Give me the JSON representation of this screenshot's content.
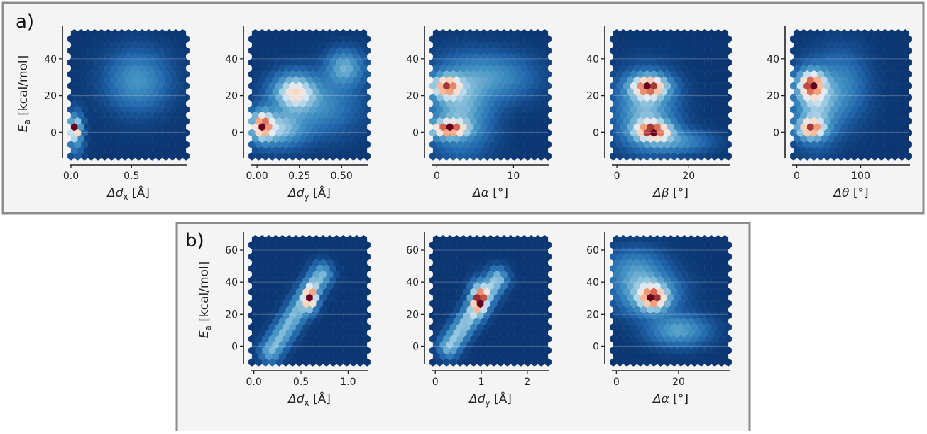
{
  "panels": [
    {
      "label": "a)"
    },
    {
      "label": "b)"
    }
  ],
  "colors": {
    "panel_background": "#f4f4f4",
    "panel_border": "#8c8c8c",
    "axis": "#222222",
    "colormap": "RdBu_r (dark blue low density → white → dark red high density)"
  },
  "chart_data": [
    {
      "type": "heatmap",
      "panel": "a)",
      "subtype": "hexbin",
      "xlabel_symbol": "Δd",
      "xlabel_sub": "x",
      "xlabel_unit": "[Å]",
      "ylabel_symbol": "E",
      "ylabel_sub": "a",
      "ylabel_unit": "[kcal/mol]",
      "xlim": [
        0,
        0.95
      ],
      "ylim": [
        -13,
        55
      ],
      "xticks": [
        0.0,
        0.5
      ],
      "xticklabels": [
        "0.0",
        "0.5"
      ],
      "yticks": [
        0,
        20,
        40
      ],
      "yticklabels": [
        "0",
        "20",
        "40"
      ],
      "density_peaks": [
        {
          "x": 0.03,
          "y": 2,
          "intensity": 1.0,
          "sx": 0.025,
          "sy": 3
        },
        {
          "x": 0.04,
          "y": 0,
          "intensity": 0.55,
          "sx": 0.04,
          "sy": 7
        },
        {
          "x": 0.55,
          "y": 28,
          "intensity": 0.35,
          "sx": 0.16,
          "sy": 10
        }
      ]
    },
    {
      "type": "heatmap",
      "panel": "a)",
      "subtype": "hexbin",
      "xlabel_symbol": "Δd",
      "xlabel_sub": "y",
      "xlabel_unit": "[Å]",
      "ylabel_symbol": "",
      "ylabel_sub": "",
      "ylabel_unit": "",
      "xlim": [
        -0.03,
        0.65
      ],
      "ylim": [
        -13,
        55
      ],
      "xticks": [
        0.0,
        0.25,
        0.5
      ],
      "xticklabels": [
        "0.00",
        "0.25",
        "0.50"
      ],
      "yticks": [
        0,
        20,
        40
      ],
      "yticklabels": [
        "0",
        "20",
        "40"
      ],
      "density_peaks": [
        {
          "x": 0.03,
          "y": 4,
          "intensity": 1.0,
          "sx": 0.04,
          "sy": 5
        },
        {
          "x": 0.22,
          "y": 22,
          "intensity": 0.75,
          "sx": 0.08,
          "sy": 6
        },
        {
          "x": 0.12,
          "y": 2,
          "intensity": 0.55,
          "sx": 0.1,
          "sy": 6
        },
        {
          "x": 0.52,
          "y": 35,
          "intensity": 0.45,
          "sx": 0.07,
          "sy": 6
        },
        {
          "x": 0.35,
          "y": 15,
          "intensity": 0.3,
          "sx": 0.15,
          "sy": 10
        }
      ]
    },
    {
      "type": "heatmap",
      "panel": "a)",
      "subtype": "hexbin",
      "xlabel_symbol": "Δα",
      "xlabel_sub": "",
      "xlabel_unit": "[°]",
      "ylabel_symbol": "",
      "ylabel_sub": "",
      "ylabel_unit": "",
      "xlim": [
        -0.5,
        14.5
      ],
      "ylim": [
        -13,
        55
      ],
      "xticks": [
        0,
        10
      ],
      "xticklabels": [
        "0",
        "10"
      ],
      "yticks": [
        0,
        20,
        40
      ],
      "yticklabels": [
        "0",
        "20",
        "40"
      ],
      "density_peaks": [
        {
          "x": 1.5,
          "y": 2,
          "intensity": 1.0,
          "sx": 1.6,
          "sy": 3
        },
        {
          "x": 1.2,
          "y": 25,
          "intensity": 0.9,
          "sx": 1.3,
          "sy": 4
        },
        {
          "x": 3.0,
          "y": 12,
          "intensity": 0.45,
          "sx": 2.5,
          "sy": 14
        },
        {
          "x": 7.0,
          "y": 30,
          "intensity": 0.3,
          "sx": 3.5,
          "sy": 8
        }
      ]
    },
    {
      "type": "heatmap",
      "panel": "a)",
      "subtype": "hexbin",
      "xlabel_symbol": "Δβ",
      "xlabel_sub": "",
      "xlabel_unit": "[°]",
      "ylabel_symbol": "",
      "ylabel_sub": "",
      "ylabel_unit": "",
      "xlim": [
        -1,
        31
      ],
      "ylim": [
        -13,
        55
      ],
      "xticks": [
        0,
        20
      ],
      "xticklabels": [
        "0",
        "20"
      ],
      "yticks": [
        0,
        20,
        40
      ],
      "yticklabels": [
        "0",
        "20",
        "40"
      ],
      "density_peaks": [
        {
          "x": 9,
          "y": 25,
          "intensity": 1.0,
          "sx": 3.5,
          "sy": 4
        },
        {
          "x": 10,
          "y": 1,
          "intensity": 0.95,
          "sx": 3.5,
          "sy": 3.5
        },
        {
          "x": 8,
          "y": 12,
          "intensity": 0.45,
          "sx": 5,
          "sy": 12
        },
        {
          "x": 16,
          "y": -5,
          "intensity": 0.3,
          "sx": 6,
          "sy": 4
        }
      ]
    },
    {
      "type": "heatmap",
      "panel": "a)",
      "subtype": "hexbin",
      "xlabel_symbol": "Δθ",
      "xlabel_sub": "",
      "xlabel_unit": "[°]",
      "ylabel_symbol": "",
      "ylabel_sub": "",
      "ylabel_unit": "",
      "xlim": [
        -5,
        175
      ],
      "ylim": [
        -13,
        55
      ],
      "xticks": [
        0,
        100
      ],
      "xticklabels": [
        "0",
        "100"
      ],
      "yticks": [
        0,
        20,
        40
      ],
      "yticklabels": [
        "0",
        "20",
        "40"
      ],
      "density_peaks": [
        {
          "x": 22,
          "y": 26,
          "intensity": 1.0,
          "sx": 14,
          "sy": 5
        },
        {
          "x": 22,
          "y": 2,
          "intensity": 0.95,
          "sx": 14,
          "sy": 3.5
        },
        {
          "x": 30,
          "y": 14,
          "intensity": 0.5,
          "sx": 22,
          "sy": 12
        },
        {
          "x": 70,
          "y": 25,
          "intensity": 0.25,
          "sx": 25,
          "sy": 12
        }
      ]
    },
    {
      "type": "heatmap",
      "panel": "b)",
      "subtype": "hexbin",
      "xlabel_symbol": "Δd",
      "xlabel_sub": "x",
      "xlabel_unit": "[Å]",
      "ylabel_symbol": "E",
      "ylabel_sub": "a",
      "ylabel_unit": "[kcal/mol]",
      "xlim": [
        -0.02,
        1.2
      ],
      "ylim": [
        -10,
        68
      ],
      "xticks": [
        0.0,
        0.5,
        1.0
      ],
      "xticklabels": [
        "0.0",
        "0.5",
        "1.0"
      ],
      "yticks": [
        0,
        20,
        40,
        60
      ],
      "yticklabels": [
        "0",
        "20",
        "40",
        "60"
      ],
      "ridge": {
        "x0": 0.18,
        "y0": -3,
        "x1": 0.72,
        "y1": 45,
        "width": 0.07,
        "intensity": 0.55
      },
      "density_peaks": [
        {
          "x": 0.6,
          "y": 30,
          "intensity": 1.0,
          "sx": 0.05,
          "sy": 5
        }
      ]
    },
    {
      "type": "heatmap",
      "panel": "b)",
      "subtype": "hexbin",
      "xlabel_symbol": "Δd",
      "xlabel_sub": "y",
      "xlabel_unit": "[Å]",
      "ylabel_symbol": "",
      "ylabel_sub": "",
      "ylabel_unit": "",
      "xlim": [
        -0.05,
        2.45
      ],
      "ylim": [
        -10,
        68
      ],
      "xticks": [
        0,
        1,
        2
      ],
      "xticklabels": [
        "0",
        "1",
        "2"
      ],
      "yticks": [
        0,
        20,
        40,
        60
      ],
      "yticklabels": [
        "0",
        "20",
        "40",
        "60"
      ],
      "ridge": {
        "x0": 0.3,
        "y0": 0,
        "x1": 1.35,
        "y1": 42,
        "width": 0.14,
        "intensity": 0.6
      },
      "density_peaks": [
        {
          "x": 0.95,
          "y": 30,
          "intensity": 1.0,
          "sx": 0.12,
          "sy": 6
        }
      ]
    },
    {
      "type": "heatmap",
      "panel": "b)",
      "subtype": "hexbin",
      "xlabel_symbol": "Δα",
      "xlabel_sub": "",
      "xlabel_unit": "[°]",
      "ylabel_symbol": "",
      "ylabel_sub": "",
      "ylabel_unit": "",
      "xlim": [
        -1,
        36
      ],
      "ylim": [
        -10,
        68
      ],
      "xticks": [
        0,
        20
      ],
      "xticklabels": [
        "0",
        "20"
      ],
      "yticks": [
        0,
        20,
        40,
        60
      ],
      "yticklabels": [
        "0",
        "20",
        "40",
        "60"
      ],
      "density_peaks": [
        {
          "x": 12,
          "y": 30,
          "intensity": 1.0,
          "sx": 3,
          "sy": 5
        },
        {
          "x": 10,
          "y": 33,
          "intensity": 0.6,
          "sx": 6,
          "sy": 8
        },
        {
          "x": 20,
          "y": 10,
          "intensity": 0.45,
          "sx": 6,
          "sy": 6
        },
        {
          "x": 6,
          "y": 48,
          "intensity": 0.35,
          "sx": 6,
          "sy": 8
        }
      ]
    }
  ]
}
